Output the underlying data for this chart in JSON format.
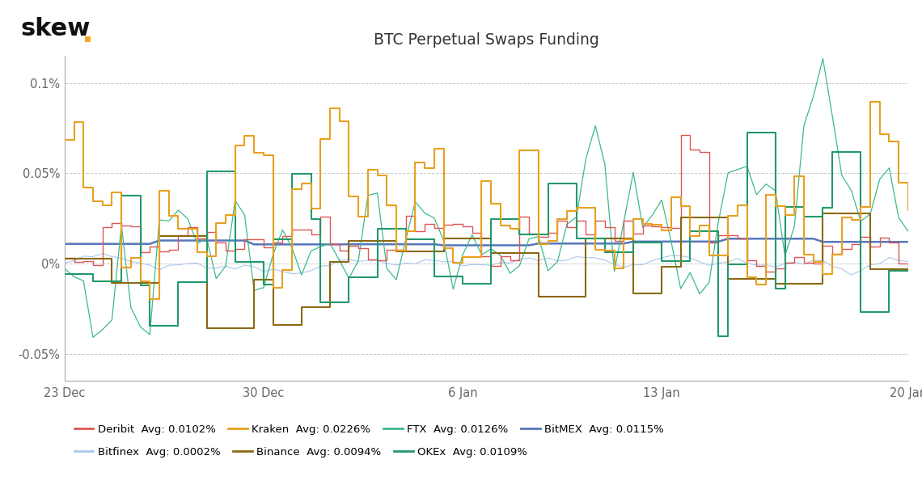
{
  "title": "BTC Perpetual Swaps Funding",
  "skew_dot_color": "#F5A623",
  "background_color": "#ffffff",
  "grid_color": "#cccccc",
  "series": {
    "Deribit": {
      "color": "#e05555",
      "avg": "0.0102%",
      "lw": 1.0
    },
    "Kraken": {
      "color": "#e8a020",
      "avg": "0.0226%",
      "lw": 1.5
    },
    "FTX": {
      "color": "#3dba8a",
      "avg": "0.0126%",
      "lw": 0.9
    },
    "BitMEX": {
      "color": "#5577bb",
      "avg": "0.0115%",
      "lw": 1.8
    },
    "Bitfinex": {
      "color": "#aac8ee",
      "avg": "0.0002%",
      "lw": 0.8
    },
    "Binance": {
      "color": "#8B6914",
      "avg": "0.0094%",
      "lw": 1.5
    },
    "OKEx": {
      "color": "#22996a",
      "avg": "0.0109%",
      "lw": 1.5
    }
  },
  "legend_row1": [
    "Deribit",
    "Kraken",
    "FTX",
    "BitMEX"
  ],
  "legend_row2": [
    "Bitfinex",
    "Binance",
    "OKEx"
  ],
  "x_tick_labels": [
    "23 Dec",
    "30 Dec",
    "6 Jan",
    "13 Jan",
    "20 Jan"
  ]
}
